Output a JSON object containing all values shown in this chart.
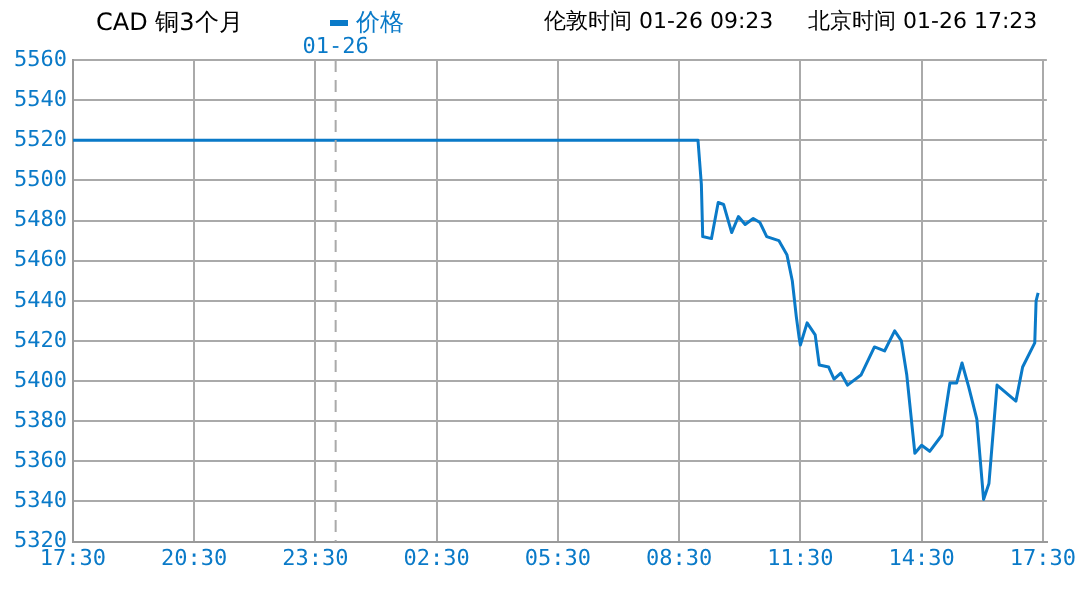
{
  "chart_data": {
    "type": "line",
    "title": "CAD 铜3个月",
    "annotations": [
      "伦敦时间 01-26 09:23",
      "北京时间 01-26 17:23"
    ],
    "xlim": [
      "--01-25T17:30",
      "--01-26T17:36"
    ],
    "xticks": [
      {
        "value": "--01-25T17:30",
        "label": "17:30"
      },
      {
        "value": "--01-25T20:30",
        "label": "20:30"
      },
      {
        "value": "--01-25T23:30",
        "label": "23:30"
      },
      {
        "value": "--01-26T02:30",
        "label": "02:30"
      },
      {
        "value": "--01-26T05:30",
        "label": "05:30"
      },
      {
        "value": "--01-26T08:30",
        "label": "08:30"
      },
      {
        "value": "--01-26T11:30",
        "label": "11:30"
      },
      {
        "value": "--01-26T14:30",
        "label": "14:30"
      },
      {
        "value": "--01-26T17:30",
        "label": "17:30"
      }
    ],
    "ylim": [
      5320,
      5560
    ],
    "yticks": [
      5320,
      5340,
      5360,
      5380,
      5400,
      5420,
      5440,
      5460,
      5480,
      5500,
      5520,
      5540,
      5560
    ],
    "grid": true,
    "legend": "top",
    "marker": "none",
    "line_style": "solid",
    "ref_lines": [
      {
        "axis": "x",
        "value": "--01-26T00:00",
        "label": "01-26",
        "color": "#aaaaaa",
        "line_style": "dashed"
      }
    ],
    "series": [
      {
        "name": "价格",
        "color": "#0a7ac8",
        "x": [
          "--01-25T17:30",
          "--01-26T08:58",
          "--01-26T09:03",
          "--01-26T09:05",
          "--01-26T09:18",
          "--01-26T09:28",
          "--01-26T09:36",
          "--01-26T09:48",
          "--01-26T09:58",
          "--01-26T10:08",
          "--01-26T10:20",
          "--01-26T10:30",
          "--01-26T10:40",
          "--01-26T10:58",
          "--01-26T11:10",
          "--01-26T11:18",
          "--01-26T11:24",
          "--01-26T11:28",
          "--01-26T11:30",
          "--01-26T11:40",
          "--01-26T11:52",
          "--01-26T11:58",
          "--01-26T12:12",
          "--01-26T12:20",
          "--01-26T12:30",
          "--01-26T12:40",
          "--01-26T13:00",
          "--01-26T13:20",
          "--01-26T13:35",
          "--01-26T13:50",
          "--01-26T14:00",
          "--01-26T14:08",
          "--01-26T14:20",
          "--01-26T14:30",
          "--01-26T14:42",
          "--01-26T15:00",
          "--01-26T15:12",
          "--01-26T15:22",
          "--01-26T15:30",
          "--01-26T15:40",
          "--01-26T15:52",
          "--01-26T16:02",
          "--01-26T16:10",
          "--01-26T16:22",
          "--01-26T16:50",
          "--01-26T17:00",
          "--01-26T17:18",
          "--01-26T17:20",
          "--01-26T17:23"
        ],
        "values": [
          5520,
          5520,
          5498,
          5472,
          5471,
          5489,
          5488,
          5474,
          5482,
          5478,
          5481,
          5479,
          5472,
          5470,
          5463,
          5450,
          5432,
          5422,
          5418,
          5429,
          5423,
          5408,
          5407,
          5401,
          5404,
          5398,
          5403,
          5417,
          5415,
          5425,
          5420,
          5403,
          5364,
          5368,
          5365,
          5373,
          5399,
          5399,
          5409,
          5397,
          5381,
          5341,
          5349,
          5398,
          5390,
          5407,
          5419,
          5440,
          5444
        ]
      }
    ]
  }
}
